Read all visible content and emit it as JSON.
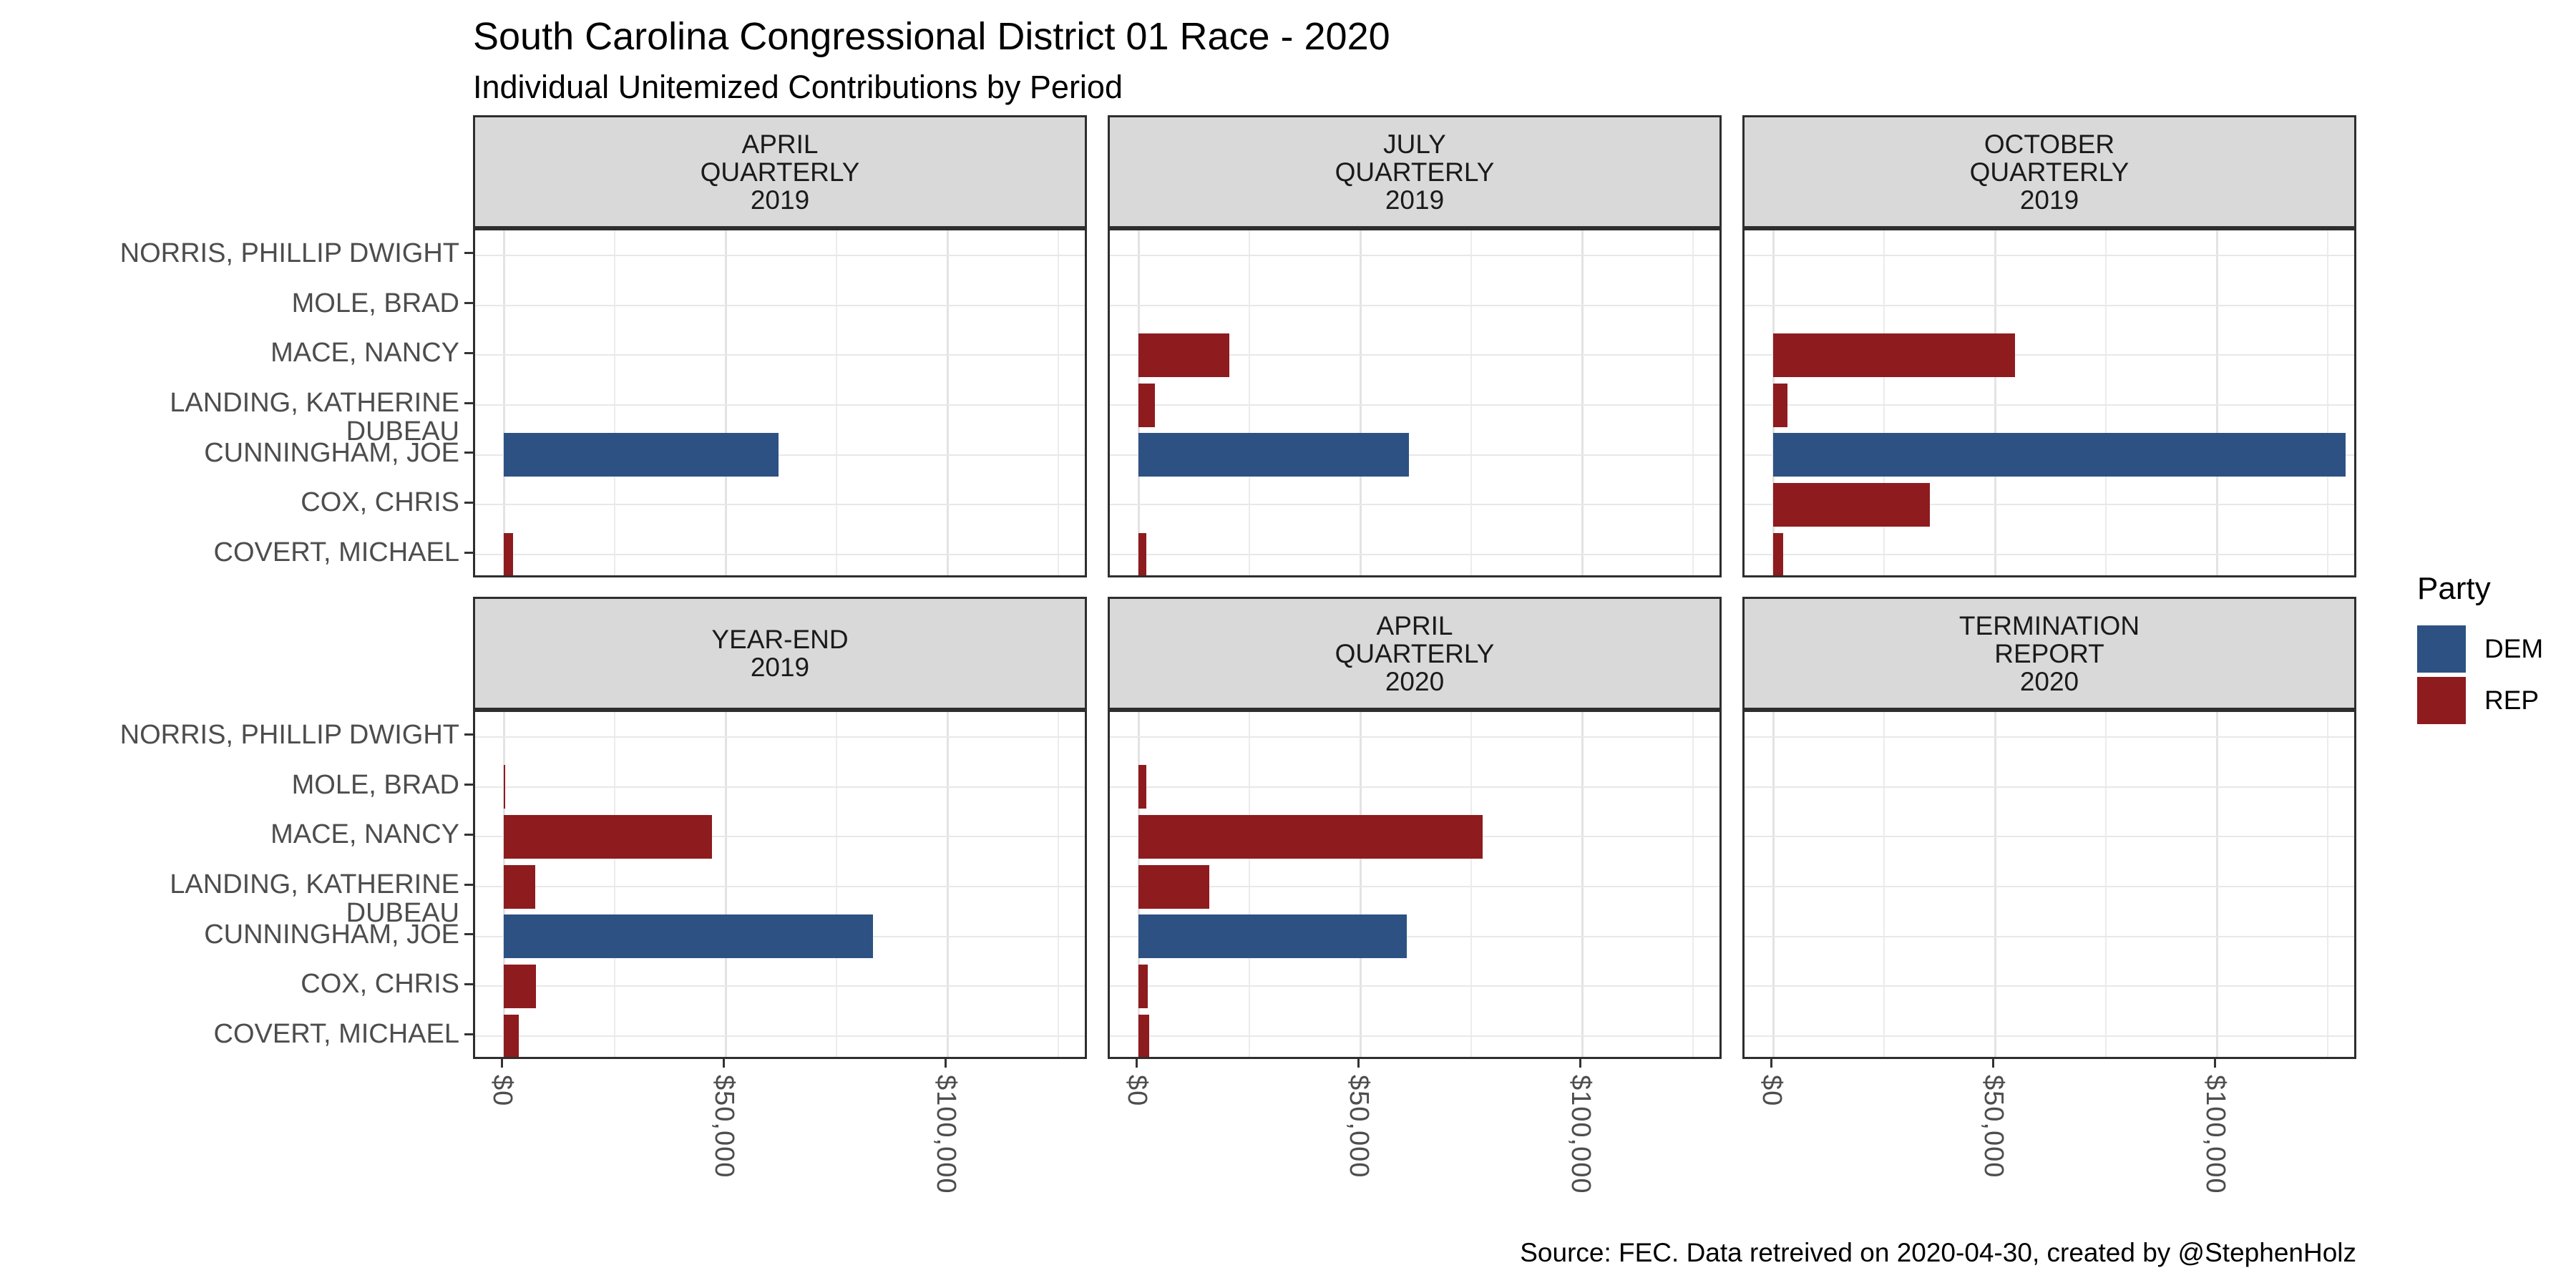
{
  "header": {
    "title": "South Carolina Congressional District 01 Race - 2020",
    "subtitle": "Individual Unitemized Contributions by Period"
  },
  "footer": {
    "caption": "Source: FEC. Data retreived on 2020-04-30, created by @StephenHolz"
  },
  "chart_data": {
    "type": "bar",
    "orientation": "horizontal",
    "faceted": true,
    "facet_layout": {
      "rows": 2,
      "cols": 3
    },
    "candidates_top_to_bottom": [
      "NORRIS, PHILLIP DWIGHT",
      "MOLE, BRAD",
      "MACE, NANCY",
      "LANDING, KATHERINE DUBEAU",
      "CUNNINGHAM, JOE",
      "COX, CHRIS",
      "COVERT, MICHAEL"
    ],
    "facets": [
      {
        "label": "APRIL QUARTERLY 2019",
        "label_lines": "APRIL\nQUARTERLY\n2019",
        "bars": [
          {
            "candidate": "CUNNINGHAM, JOE",
            "party": "DEM",
            "value": 62000
          },
          {
            "candidate": "COVERT, MICHAEL",
            "party": "REP",
            "value": 2100
          }
        ]
      },
      {
        "label": "JULY QUARTERLY 2019",
        "label_lines": "JULY\nQUARTERLY\n2019",
        "bars": [
          {
            "candidate": "MACE, NANCY",
            "party": "REP",
            "value": 20500
          },
          {
            "candidate": "LANDING, KATHERINE DUBEAU",
            "party": "REP",
            "value": 3700
          },
          {
            "candidate": "CUNNINGHAM, JOE",
            "party": "DEM",
            "value": 61000
          },
          {
            "candidate": "COVERT, MICHAEL",
            "party": "REP",
            "value": 1800
          }
        ]
      },
      {
        "label": "OCTOBER QUARTERLY 2019",
        "label_lines": "OCTOBER\nQUARTERLY\n2019",
        "bars": [
          {
            "candidate": "MACE, NANCY",
            "party": "REP",
            "value": 54500
          },
          {
            "candidate": "LANDING, KATHERINE DUBEAU",
            "party": "REP",
            "value": 3200
          },
          {
            "candidate": "CUNNINGHAM, JOE",
            "party": "DEM",
            "value": 129000
          },
          {
            "candidate": "COX, CHRIS",
            "party": "REP",
            "value": 35300
          },
          {
            "candidate": "COVERT, MICHAEL",
            "party": "REP",
            "value": 2300
          }
        ]
      },
      {
        "label": "YEAR-END 2019",
        "label_lines": "YEAR-END\n2019",
        "bars": [
          {
            "candidate": "MOLE, BRAD",
            "party": "REP",
            "value": 300
          },
          {
            "candidate": "MACE, NANCY",
            "party": "REP",
            "value": 47000
          },
          {
            "candidate": "LANDING, KATHERINE DUBEAU",
            "party": "REP",
            "value": 7100
          },
          {
            "candidate": "CUNNINGHAM, JOE",
            "party": "DEM",
            "value": 83200
          },
          {
            "candidate": "COX, CHRIS",
            "party": "REP",
            "value": 7300
          },
          {
            "candidate": "COVERT, MICHAEL",
            "party": "REP",
            "value": 3400
          }
        ]
      },
      {
        "label": "APRIL QUARTERLY 2020",
        "label_lines": "APRIL\nQUARTERLY\n2020",
        "bars": [
          {
            "candidate": "MOLE, BRAD",
            "party": "REP",
            "value": 1700
          },
          {
            "candidate": "MACE, NANCY",
            "party": "REP",
            "value": 77500
          },
          {
            "candidate": "LANDING, KATHERINE DUBEAU",
            "party": "REP",
            "value": 15900
          },
          {
            "candidate": "CUNNINGHAM, JOE",
            "party": "DEM",
            "value": 60500
          },
          {
            "candidate": "COX, CHRIS",
            "party": "REP",
            "value": 2100
          },
          {
            "candidate": "COVERT, MICHAEL",
            "party": "REP",
            "value": 2400
          }
        ]
      },
      {
        "label": "TERMINATION REPORT 2020",
        "label_lines": "TERMINATION\nREPORT\n2020",
        "bars": []
      }
    ],
    "x_axis": {
      "ticks": [
        {
          "value": 0,
          "label": "$0"
        },
        {
          "value": 50000,
          "label": "$50,000"
        },
        {
          "value": 100000,
          "label": "$100,000"
        }
      ],
      "minor_gridlines": [
        25000,
        75000,
        125000
      ],
      "max": 132000,
      "label_rotation_deg": 90
    },
    "legend": {
      "title": "Party",
      "items": [
        {
          "label": "DEM",
          "color": "#2D5183"
        },
        {
          "label": "REP",
          "color": "#8E1B1E"
        }
      ]
    },
    "colors": {
      "DEM": "#2D5183",
      "REP": "#8E1B1E",
      "strip_bg": "#D9D9D9",
      "panel_border": "#2E2E2E",
      "grid_major": "#E3E3E3",
      "grid_minor": "#ECECEC",
      "grid_horizontal": "#E8E8E8",
      "axis_text": "#4D4D4D",
      "tick_mark": "#333333"
    }
  }
}
